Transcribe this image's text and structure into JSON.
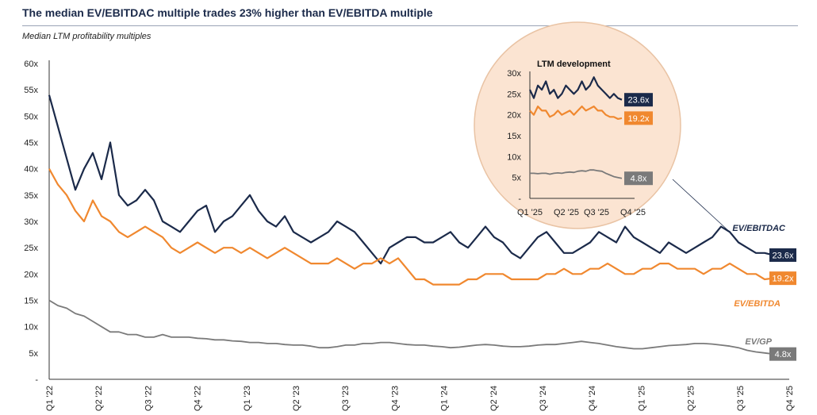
{
  "header": {
    "title": "The median EV/EBITDAC multiple trades 23% higher than EV/EBITDA multiple",
    "subtitle": "Median LTM profitability multiples"
  },
  "colors": {
    "ebitdac": "#1b2a4a",
    "ebitda": "#f0882f",
    "gp": "#7a7a7a",
    "inset_bg": "#fbe4d2",
    "inset_border": "#e9c3a4"
  },
  "chart_data": [
    {
      "type": "line",
      "title": "Median LTM profitability multiples",
      "xlabel": "",
      "ylabel": "",
      "ylim": [
        0,
        60
      ],
      "y_ticks": [
        "-",
        "5x",
        "10x",
        "15x",
        "20x",
        "25x",
        "30x",
        "35x",
        "40x",
        "45x",
        "50x",
        "55x",
        "60x"
      ],
      "x_ticks": [
        "Q1 '22",
        "Q2 '22",
        "Q3 '22",
        "Q4 '22",
        "Q1 '23",
        "Q2 '23",
        "Q3 '23",
        "Q4 '23",
        "Q1 '24",
        "Q2 '24",
        "Q3 '24",
        "Q4 '24",
        "Q1 '25",
        "Q2 '25",
        "Q3 '25",
        "Q4 '25"
      ],
      "series": [
        {
          "name": "EV/EBITDAC",
          "end_label": "23.6x",
          "values": [
            54,
            48,
            42,
            36,
            40,
            43,
            38,
            45,
            35,
            33,
            34,
            36,
            34,
            30,
            29,
            28,
            30,
            32,
            33,
            28,
            30,
            31,
            33,
            35,
            32,
            30,
            29,
            31,
            28,
            27,
            26,
            27,
            28,
            30,
            29,
            28,
            26,
            24,
            22,
            25,
            26,
            27,
            27,
            26,
            26,
            27,
            28,
            26,
            25,
            27,
            29,
            27,
            26,
            24,
            23,
            25,
            27,
            28,
            26,
            24,
            24,
            25,
            26,
            28,
            27,
            26,
            29,
            27,
            26,
            25,
            24,
            26,
            25,
            24,
            25,
            26,
            27,
            29,
            28,
            26,
            25,
            24,
            24,
            23.6
          ]
        },
        {
          "name": "EV/EBITDA",
          "end_label": "19.2x",
          "values": [
            40,
            37,
            35,
            32,
            30,
            34,
            31,
            30,
            28,
            27,
            28,
            29,
            28,
            27,
            25,
            24,
            25,
            26,
            25,
            24,
            25,
            25,
            24,
            25,
            24,
            23,
            24,
            25,
            24,
            23,
            22,
            22,
            22,
            23,
            22,
            21,
            22,
            22,
            23,
            22,
            23,
            21,
            19,
            19,
            18,
            18,
            18,
            18,
            19,
            19,
            20,
            20,
            20,
            19,
            19,
            19,
            19,
            20,
            20,
            21,
            20,
            20,
            21,
            21,
            22,
            21,
            20,
            20,
            21,
            21,
            22,
            22,
            21,
            21,
            21,
            20,
            21,
            21,
            22,
            21,
            20,
            20,
            19,
            19.2
          ]
        },
        {
          "name": "EV/GP",
          "end_label": "4.8x",
          "values": [
            15,
            14,
            13.5,
            12.5,
            12,
            11,
            10,
            9,
            9,
            8.5,
            8.5,
            8,
            8,
            8.5,
            8,
            8,
            8,
            7.8,
            7.7,
            7.5,
            7.5,
            7.3,
            7.2,
            7,
            7,
            6.8,
            6.8,
            6.6,
            6.5,
            6.5,
            6.3,
            6,
            6,
            6.2,
            6.5,
            6.5,
            6.8,
            6.8,
            7,
            7,
            6.8,
            6.6,
            6.5,
            6.5,
            6.3,
            6.2,
            6,
            6.1,
            6.3,
            6.5,
            6.6,
            6.5,
            6.3,
            6.2,
            6.2,
            6.3,
            6.5,
            6.6,
            6.6,
            6.8,
            7,
            7.2,
            7,
            6.8,
            6.5,
            6.2,
            6,
            5.8,
            5.8,
            6,
            6.2,
            6.4,
            6.5,
            6.6,
            6.8,
            6.8,
            6.7,
            6.5,
            6.3,
            6,
            5.5,
            5.2,
            5,
            4.8
          ]
        }
      ]
    },
    {
      "type": "line",
      "title": "LTM development",
      "ylim": [
        0,
        30
      ],
      "y_ticks": [
        "-",
        "5x",
        "10x",
        "15x",
        "20x",
        "25x",
        "30x"
      ],
      "x_ticks": [
        "Q1 '25",
        "Q2 '25",
        "Q3 '25",
        "Q4 '25"
      ],
      "series": [
        {
          "name": "EV/EBITDAC",
          "end_label": "23.6x",
          "values": [
            26,
            24,
            27,
            26,
            28,
            25,
            26,
            24,
            25,
            27,
            26,
            25,
            26,
            28,
            26,
            27,
            29,
            27,
            26,
            25,
            24,
            25,
            24,
            23.6
          ]
        },
        {
          "name": "EV/EBITDA",
          "end_label": "19.2x",
          "values": [
            21,
            20,
            22,
            21,
            21,
            19.5,
            20,
            21,
            20,
            20.5,
            21,
            20,
            21,
            22,
            21,
            21.5,
            22,
            21,
            21,
            20,
            19.5,
            19.5,
            19,
            19.2
          ]
        },
        {
          "name": "EV/GP",
          "end_label": "4.8x",
          "values": [
            6,
            6,
            5.9,
            6,
            6,
            5.8,
            6,
            6.1,
            6,
            6.2,
            6.3,
            6.2,
            6.5,
            6.6,
            6.5,
            6.8,
            6.8,
            6.6,
            6.5,
            6,
            5.6,
            5.2,
            5,
            4.8
          ]
        }
      ]
    }
  ]
}
